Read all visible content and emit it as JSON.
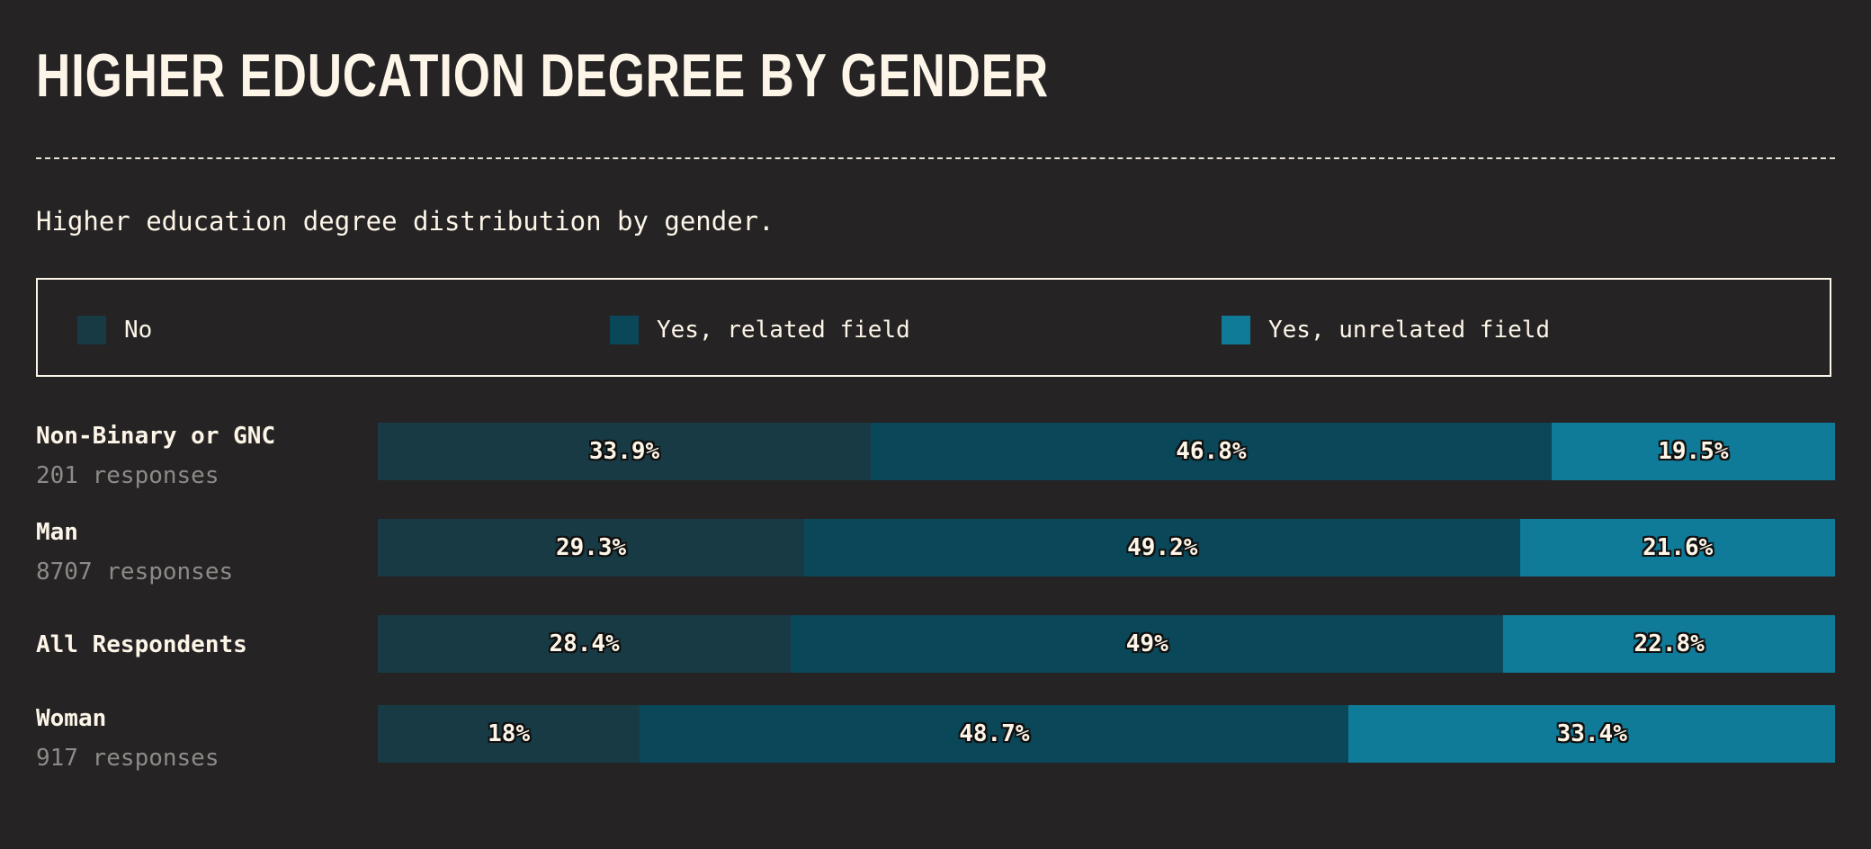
{
  "title": "HIGHER EDUCATION DEGREE BY GENDER",
  "subtitle": "Higher education degree distribution by gender.",
  "legend": [
    {
      "label": "No",
      "color": "#183a45"
    },
    {
      "label": "Yes, related field",
      "color": "#0a4759"
    },
    {
      "label": "Yes, unrelated field",
      "color": "#0f7b99"
    }
  ],
  "rows": [
    {
      "name": "Non-Binary or GNC",
      "count": "201 responses"
    },
    {
      "name": "Man",
      "count": "8707 responses"
    },
    {
      "name": "All Respondents",
      "count": ""
    },
    {
      "name": "Woman",
      "count": "917 responses"
    }
  ],
  "chart_data": {
    "type": "bar",
    "orientation": "horizontal",
    "stacked": true,
    "normalized_percent": true,
    "title": "HIGHER EDUCATION DEGREE BY GENDER",
    "subtitle": "Higher education degree distribution by gender.",
    "categories": [
      "Non-Binary or GNC",
      "Man",
      "All Respondents",
      "Woman"
    ],
    "series": [
      {
        "name": "No",
        "values": [
          33.9,
          29.3,
          28.4,
          18
        ],
        "labels": [
          "33.9%",
          "29.3%",
          "28.4%",
          "18%"
        ]
      },
      {
        "name": "Yes, related field",
        "values": [
          46.8,
          49.2,
          49,
          48.7
        ],
        "labels": [
          "46.8%",
          "49.2%",
          "49%",
          "48.7%"
        ]
      },
      {
        "name": "Yes, unrelated field",
        "values": [
          19.5,
          21.6,
          22.8,
          33.4
        ],
        "labels": [
          "19.5%",
          "21.6%",
          "22.8%",
          "33.4%"
        ]
      }
    ],
    "legend_position": "top",
    "grid": false
  }
}
